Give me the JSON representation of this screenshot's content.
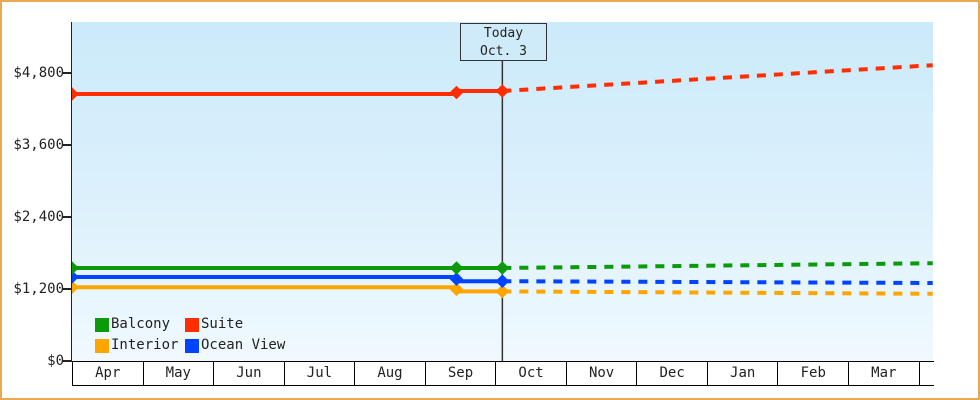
{
  "frame": {
    "border_color": "#e9a757"
  },
  "today_box": {
    "line1": "Today",
    "line2": "Oct. 3"
  },
  "chart_data": {
    "type": "line",
    "title": "",
    "x_axis": {
      "labels": [
        "Apr",
        "May",
        "Jun",
        "Jul",
        "Aug",
        "Sep",
        "Oct",
        "Nov",
        "Dec",
        "Jan",
        "Feb",
        "Mar"
      ]
    },
    "y_axis": {
      "ticks": [
        {
          "value": 0,
          "label": "$0"
        },
        {
          "value": 1200,
          "label": "$1,200"
        },
        {
          "value": 2400,
          "label": "$2,400"
        },
        {
          "value": 3600,
          "label": "$3,600"
        },
        {
          "value": 4800,
          "label": "$4,800"
        }
      ],
      "ylim": [
        0,
        5650
      ]
    },
    "today": {
      "x_month": 6.1,
      "label": "Today Oct. 3"
    },
    "x_end_month": 12.2,
    "legend_position": "bottom-left-inside",
    "grid": false,
    "series": [
      {
        "name": "Interior",
        "color": "#ffa500",
        "history": [
          {
            "x": 0,
            "y": 1230
          },
          {
            "x": 5.45,
            "y": 1230
          },
          {
            "x": 5.45,
            "y": 1160
          },
          {
            "x": 6.1,
            "y": 1160
          }
        ],
        "forecast": [
          {
            "x": 6.1,
            "y": 1160
          },
          {
            "x": 12.2,
            "y": 1120
          }
        ],
        "markers": [
          {
            "x": 0,
            "y": 1230
          },
          {
            "x": 5.45,
            "y": 1195
          },
          {
            "x": 6.1,
            "y": 1160
          }
        ]
      },
      {
        "name": "Ocean View",
        "color": "#0044ff",
        "history": [
          {
            "x": 0,
            "y": 1400
          },
          {
            "x": 5.45,
            "y": 1400
          },
          {
            "x": 5.45,
            "y": 1330
          },
          {
            "x": 6.1,
            "y": 1330
          }
        ],
        "forecast": [
          {
            "x": 6.1,
            "y": 1330
          },
          {
            "x": 12.2,
            "y": 1300
          }
        ],
        "markers": [
          {
            "x": 0,
            "y": 1400
          },
          {
            "x": 5.45,
            "y": 1365
          },
          {
            "x": 6.1,
            "y": 1330
          }
        ]
      },
      {
        "name": "Balcony",
        "color": "#0a9a0a",
        "history": [
          {
            "x": 0,
            "y": 1550
          },
          {
            "x": 6.1,
            "y": 1550
          }
        ],
        "forecast": [
          {
            "x": 6.1,
            "y": 1550
          },
          {
            "x": 12.2,
            "y": 1630
          }
        ],
        "markers": [
          {
            "x": 0,
            "y": 1550
          },
          {
            "x": 5.45,
            "y": 1550
          },
          {
            "x": 6.1,
            "y": 1550
          }
        ]
      },
      {
        "name": "Suite",
        "color": "#ff2d00",
        "history": [
          {
            "x": 0,
            "y": 4450
          },
          {
            "x": 5.45,
            "y": 4450
          },
          {
            "x": 5.45,
            "y": 4500
          },
          {
            "x": 6.1,
            "y": 4500
          }
        ],
        "forecast": [
          {
            "x": 6.1,
            "y": 4500
          },
          {
            "x": 12.2,
            "y": 4930
          }
        ],
        "markers": [
          {
            "x": 0,
            "y": 4450
          },
          {
            "x": 5.45,
            "y": 4475
          },
          {
            "x": 6.1,
            "y": 4500
          }
        ]
      }
    ],
    "legend_order": [
      "Balcony",
      "Suite",
      "Interior",
      "Ocean View"
    ]
  }
}
